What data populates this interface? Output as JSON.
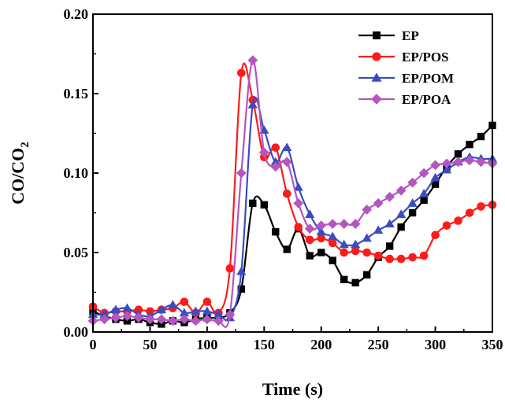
{
  "chart_data": {
    "type": "line",
    "xlabel": "Time (s)",
    "ylabel": "CO/CO",
    "ylabel_sub": "2",
    "xlim": [
      0,
      350
    ],
    "ylim": [
      0,
      0.2
    ],
    "x_ticks": [
      0,
      50,
      100,
      150,
      200,
      250,
      300,
      350
    ],
    "x_tick_labels": [
      "0",
      "50",
      "100",
      "150",
      "200",
      "250",
      "300",
      "350"
    ],
    "y_ticks": [
      0,
      0.05,
      0.1,
      0.15,
      0.2
    ],
    "y_tick_labels": [
      "0.00",
      "0.05",
      "0.10",
      "0.15",
      "0.20"
    ],
    "grid": false,
    "legend_position": "top-right",
    "series": [
      {
        "name": "EP",
        "color": "#000000",
        "marker": "square",
        "x": [
          0,
          10,
          20,
          30,
          40,
          50,
          60,
          70,
          80,
          90,
          100,
          110,
          120,
          130,
          140,
          150,
          160,
          170,
          180,
          190,
          200,
          210,
          220,
          230,
          240,
          250,
          260,
          270,
          280,
          290,
          300,
          310,
          320,
          330,
          340,
          350
        ],
        "y": [
          0.013,
          0.01,
          0.008,
          0.007,
          0.008,
          0.006,
          0.005,
          0.007,
          0.006,
          0.008,
          0.009,
          0.009,
          0.012,
          0.027,
          0.081,
          0.08,
          0.063,
          0.052,
          0.065,
          0.048,
          0.05,
          0.045,
          0.033,
          0.031,
          0.036,
          0.047,
          0.054,
          0.066,
          0.075,
          0.083,
          0.093,
          0.104,
          0.112,
          0.118,
          0.123,
          0.13
        ]
      },
      {
        "name": "EP/POS",
        "color": "#ff1a1a",
        "marker": "circle",
        "x": [
          0,
          10,
          20,
          30,
          40,
          50,
          60,
          70,
          80,
          90,
          100,
          110,
          120,
          130,
          140,
          150,
          160,
          170,
          180,
          190,
          200,
          210,
          220,
          230,
          240,
          250,
          260,
          270,
          280,
          290,
          300,
          310,
          320,
          330,
          340,
          350
        ],
        "y": [
          0.016,
          0.012,
          0.013,
          0.013,
          0.014,
          0.013,
          0.014,
          0.015,
          0.019,
          0.012,
          0.019,
          0.012,
          0.04,
          0.163,
          0.146,
          0.11,
          0.116,
          0.087,
          0.066,
          0.058,
          0.059,
          0.056,
          0.05,
          0.051,
          0.05,
          0.048,
          0.046,
          0.046,
          0.047,
          0.048,
          0.061,
          0.067,
          0.07,
          0.075,
          0.079,
          0.08
        ]
      },
      {
        "name": "EP/POM",
        "color": "#3a4cc0",
        "marker": "triangle",
        "x": [
          0,
          10,
          20,
          30,
          40,
          50,
          60,
          70,
          80,
          90,
          100,
          110,
          120,
          130,
          140,
          150,
          160,
          170,
          180,
          190,
          200,
          210,
          220,
          230,
          240,
          250,
          260,
          270,
          280,
          290,
          300,
          310,
          320,
          330,
          340,
          350
        ],
        "y": [
          0.011,
          0.011,
          0.014,
          0.015,
          0.011,
          0.01,
          0.014,
          0.017,
          0.012,
          0.013,
          0.013,
          0.011,
          0.009,
          0.038,
          0.143,
          0.127,
          0.107,
          0.116,
          0.091,
          0.074,
          0.063,
          0.06,
          0.055,
          0.055,
          0.059,
          0.064,
          0.068,
          0.074,
          0.081,
          0.087,
          0.097,
          0.102,
          0.107,
          0.11,
          0.109,
          0.109
        ]
      },
      {
        "name": "EP/POA",
        "color": "#b455c0",
        "marker": "diamond",
        "x": [
          0,
          10,
          20,
          30,
          40,
          50,
          60,
          70,
          80,
          90,
          100,
          110,
          120,
          130,
          140,
          150,
          160,
          170,
          180,
          190,
          200,
          210,
          220,
          230,
          240,
          250,
          260,
          270,
          280,
          290,
          300,
          310,
          320,
          330,
          340,
          350
        ],
        "y": [
          0.007,
          0.008,
          0.009,
          0.01,
          0.009,
          0.008,
          0.008,
          0.007,
          0.008,
          0.007,
          0.008,
          0.007,
          0.011,
          0.1,
          0.171,
          0.113,
          0.104,
          0.107,
          0.081,
          0.065,
          0.067,
          0.068,
          0.068,
          0.068,
          0.077,
          0.081,
          0.085,
          0.089,
          0.094,
          0.1,
          0.105,
          0.106,
          0.107,
          0.108,
          0.107,
          0.106
        ]
      }
    ]
  }
}
